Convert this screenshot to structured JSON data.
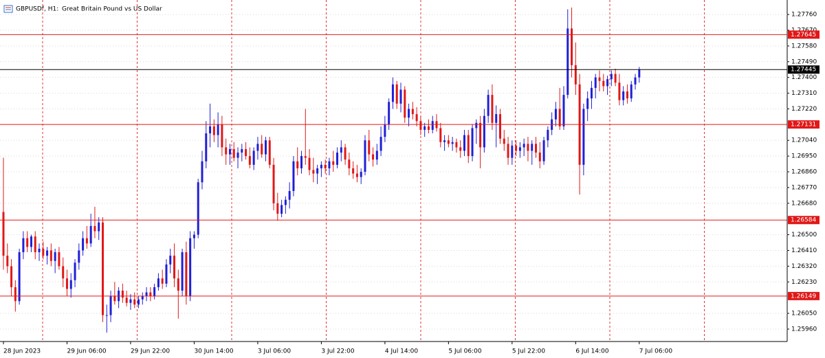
{
  "chart_data": {
    "type": "candlestick",
    "symbol": "GBPUSDf, H1:",
    "title": "Great Britain Pound vs US Dollar",
    "bull_color": "#1f1fd6",
    "bear_color": "#e01818",
    "ylim": [
      1.25889,
      1.27843
    ],
    "yticks": [
      {
        "value": 1.2776,
        "label": "1.27760"
      },
      {
        "value": 1.2767,
        "label": "1.27670"
      },
      {
        "value": 1.2758,
        "label": "1.27580"
      },
      {
        "value": 1.2749,
        "label": "1.27490"
      },
      {
        "value": 1.274,
        "label": "1.27400"
      },
      {
        "value": 1.2731,
        "label": "1.27310"
      },
      {
        "value": 1.2722,
        "label": "1.27220"
      },
      {
        "value": 1.2704,
        "label": "1.27040"
      },
      {
        "value": 1.2695,
        "label": "1.26950"
      },
      {
        "value": 1.2686,
        "label": "1.26860"
      },
      {
        "value": 1.2677,
        "label": "1.26770"
      },
      {
        "value": 1.2668,
        "label": "1.26680"
      },
      {
        "value": 1.265,
        "label": "1.26500"
      },
      {
        "value": 1.2641,
        "label": "1.26410"
      },
      {
        "value": 1.2632,
        "label": "1.26320"
      },
      {
        "value": 1.2623,
        "label": "1.26230"
      },
      {
        "value": 1.2605,
        "label": "1.26050"
      },
      {
        "value": 1.2596,
        "label": "1.25960"
      }
    ],
    "xticks": [
      {
        "value": 0,
        "label": "28 Jun 2023"
      },
      {
        "value": 16,
        "label": "29 Jun 06:00"
      },
      {
        "value": 32,
        "label": "29 Jun 22:00"
      },
      {
        "value": 48,
        "label": "30 Jun 14:00"
      },
      {
        "value": 64,
        "label": "3 Jul 06:00"
      },
      {
        "value": 80,
        "label": "3 Jul 22:00"
      },
      {
        "value": 96,
        "label": "4 Jul 14:00"
      },
      {
        "value": 112,
        "label": "5 Jul 06:00"
      },
      {
        "value": 128,
        "label": "5 Jul 22:00"
      },
      {
        "value": 144,
        "label": "6 Jul 14:00"
      },
      {
        "value": 160,
        "label": "7 Jul 06:00"
      }
    ],
    "levels": [
      {
        "value": 1.27645,
        "color": "#e01818"
      },
      {
        "value": 1.27445,
        "color": "#000000"
      },
      {
        "value": 1.27131,
        "color": "#e01818"
      },
      {
        "value": 1.26584,
        "color": "#e01818"
      },
      {
        "value": 1.26149,
        "color": "#e01818"
      }
    ],
    "candles": [
      [
        1.2663,
        1.2694,
        1.263,
        1.2638
      ],
      [
        1.2638,
        1.2645,
        1.2628,
        1.2632
      ],
      [
        1.2632,
        1.2636,
        1.2615,
        1.262
      ],
      [
        1.262,
        1.2624,
        1.2606,
        1.2612
      ],
      [
        1.2612,
        1.2642,
        1.261,
        1.264
      ],
      [
        1.264,
        1.2652,
        1.2636,
        1.2648
      ],
      [
        1.2648,
        1.2652,
        1.264,
        1.2643
      ],
      [
        1.2643,
        1.265,
        1.264,
        1.2649
      ],
      [
        1.2649,
        1.2652,
        1.2636,
        1.264
      ],
      [
        1.264,
        1.2645,
        1.2635,
        1.2642
      ],
      [
        1.2642,
        1.2646,
        1.2636,
        1.2638
      ],
      [
        1.2638,
        1.2643,
        1.2633,
        1.2641
      ],
      [
        1.2641,
        1.2645,
        1.2632,
        1.2635
      ],
      [
        1.2635,
        1.2642,
        1.2628,
        1.264
      ],
      [
        1.264,
        1.2643,
        1.263,
        1.2632
      ],
      [
        1.2632,
        1.2637,
        1.262,
        1.2625
      ],
      [
        1.2625,
        1.263,
        1.2615,
        1.2619
      ],
      [
        1.2619,
        1.2628,
        1.2614,
        1.2624
      ],
      [
        1.2624,
        1.2636,
        1.262,
        1.2634
      ],
      [
        1.2634,
        1.2645,
        1.263,
        1.2641
      ],
      [
        1.2641,
        1.2652,
        1.2638,
        1.2648
      ],
      [
        1.2648,
        1.2655,
        1.2642,
        1.2645
      ],
      [
        1.2645,
        1.2662,
        1.2643,
        1.2655
      ],
      [
        1.2655,
        1.2666,
        1.2648,
        1.2652
      ],
      [
        1.2652,
        1.266,
        1.2647,
        1.2657
      ],
      [
        1.2657,
        1.266,
        1.26,
        1.2604
      ],
      [
        1.2604,
        1.261,
        1.2594,
        1.2604
      ],
      [
        1.2604,
        1.2618,
        1.26,
        1.2615
      ],
      [
        1.2615,
        1.2623,
        1.261,
        1.2612
      ],
      [
        1.2612,
        1.262,
        1.2608,
        1.2618
      ],
      [
        1.2618,
        1.2622,
        1.2611,
        1.2614
      ],
      [
        1.2614,
        1.2618,
        1.2609,
        1.2611
      ],
      [
        1.2611,
        1.2616,
        1.2607,
        1.2613
      ],
      [
        1.2613,
        1.2617,
        1.2608,
        1.261
      ],
      [
        1.261,
        1.2615,
        1.2608,
        1.2613
      ],
      [
        1.2613,
        1.2617,
        1.261,
        1.2615
      ],
      [
        1.2615,
        1.262,
        1.2612,
        1.2617
      ],
      [
        1.2617,
        1.262,
        1.2612,
        1.2615
      ],
      [
        1.2615,
        1.2622,
        1.2613,
        1.262
      ],
      [
        1.262,
        1.2628,
        1.2618,
        1.2625
      ],
      [
        1.2625,
        1.263,
        1.2619,
        1.2622
      ],
      [
        1.2622,
        1.2636,
        1.262,
        1.2633
      ],
      [
        1.2633,
        1.2642,
        1.2628,
        1.2638
      ],
      [
        1.2638,
        1.2645,
        1.262,
        1.2625
      ],
      [
        1.2625,
        1.263,
        1.2602,
        1.2618
      ],
      [
        1.2618,
        1.2642,
        1.2615,
        1.264
      ],
      [
        1.264,
        1.2646,
        1.261,
        1.2615
      ],
      [
        1.2615,
        1.2652,
        1.2612,
        1.2648
      ],
      [
        1.2648,
        1.2652,
        1.2642,
        1.265
      ],
      [
        1.265,
        1.2682,
        1.2648,
        1.268
      ],
      [
        1.268,
        1.2698,
        1.2676,
        1.2692
      ],
      [
        1.2692,
        1.2715,
        1.2688,
        1.2708
      ],
      [
        1.2708,
        1.2725,
        1.27,
        1.2712
      ],
      [
        1.2712,
        1.2716,
        1.2703,
        1.2707
      ],
      [
        1.2707,
        1.272,
        1.27,
        1.2713
      ],
      [
        1.2713,
        1.2718,
        1.2695,
        1.27
      ],
      [
        1.27,
        1.2705,
        1.269,
        1.2696
      ],
      [
        1.2696,
        1.2702,
        1.269,
        1.2699
      ],
      [
        1.2699,
        1.2703,
        1.2692,
        1.2694
      ],
      [
        1.2694,
        1.27,
        1.2688,
        1.2697
      ],
      [
        1.2697,
        1.2702,
        1.2692,
        1.2699
      ],
      [
        1.2699,
        1.2703,
        1.2693,
        1.2695
      ],
      [
        1.2695,
        1.27,
        1.2688,
        1.269
      ],
      [
        1.269,
        1.27,
        1.2687,
        1.2698
      ],
      [
        1.2698,
        1.2706,
        1.2693,
        1.2702
      ],
      [
        1.2702,
        1.2707,
        1.2694,
        1.2696
      ],
      [
        1.2696,
        1.2706,
        1.2692,
        1.2704
      ],
      [
        1.2704,
        1.2706,
        1.2688,
        1.269
      ],
      [
        1.269,
        1.2694,
        1.2664,
        1.2668
      ],
      [
        1.2668,
        1.2674,
        1.2658,
        1.2662
      ],
      [
        1.2662,
        1.267,
        1.266,
        1.2667
      ],
      [
        1.2667,
        1.2672,
        1.2662,
        1.267
      ],
      [
        1.267,
        1.268,
        1.2665,
        1.2675
      ],
      [
        1.2675,
        1.2695,
        1.2672,
        1.2692
      ],
      [
        1.2692,
        1.27,
        1.2684,
        1.2688
      ],
      [
        1.2688,
        1.2698,
        1.2685,
        1.2695
      ],
      [
        1.2695,
        1.2722,
        1.269,
        1.2694
      ],
      [
        1.2694,
        1.2699,
        1.2684,
        1.2687
      ],
      [
        1.2687,
        1.2694,
        1.268,
        1.2685
      ],
      [
        1.2685,
        1.269,
        1.2679,
        1.2688
      ],
      [
        1.2688,
        1.2692,
        1.2683,
        1.269
      ],
      [
        1.269,
        1.2693,
        1.2685,
        1.2688
      ],
      [
        1.2688,
        1.2694,
        1.2684,
        1.2692
      ],
      [
        1.2692,
        1.2698,
        1.2686,
        1.269
      ],
      [
        1.269,
        1.27,
        1.2688,
        1.2697
      ],
      [
        1.2697,
        1.2704,
        1.2692,
        1.27
      ],
      [
        1.27,
        1.2702,
        1.269,
        1.2693
      ],
      [
        1.2693,
        1.2697,
        1.2684,
        1.2688
      ],
      [
        1.2688,
        1.2692,
        1.2682,
        1.2685
      ],
      [
        1.2685,
        1.269,
        1.268,
        1.2683
      ],
      [
        1.2683,
        1.2688,
        1.2679,
        1.2686
      ],
      [
        1.2686,
        1.2707,
        1.2684,
        1.2704
      ],
      [
        1.2704,
        1.271,
        1.2692,
        1.2696
      ],
      [
        1.2696,
        1.27,
        1.2689,
        1.2693
      ],
      [
        1.2693,
        1.2702,
        1.269,
        1.2698
      ],
      [
        1.2698,
        1.2712,
        1.2695,
        1.2706
      ],
      [
        1.2706,
        1.2718,
        1.2703,
        1.2713
      ],
      [
        1.2713,
        1.2728,
        1.271,
        1.2726
      ],
      [
        1.2726,
        1.274,
        1.2722,
        1.2736
      ],
      [
        1.2736,
        1.2738,
        1.2722,
        1.2725
      ],
      [
        1.2725,
        1.2737,
        1.272,
        1.2733
      ],
      [
        1.2733,
        1.2735,
        1.2714,
        1.2717
      ],
      [
        1.2717,
        1.2725,
        1.2712,
        1.2722
      ],
      [
        1.2722,
        1.2726,
        1.2716,
        1.2719
      ],
      [
        1.2719,
        1.2723,
        1.2712,
        1.2715
      ],
      [
        1.2715,
        1.2718,
        1.2707,
        1.271
      ],
      [
        1.271,
        1.2714,
        1.2706,
        1.2712
      ],
      [
        1.2712,
        1.2716,
        1.2708,
        1.271
      ],
      [
        1.271,
        1.2718,
        1.2708,
        1.2715
      ],
      [
        1.2715,
        1.2719,
        1.2709,
        1.2711
      ],
      [
        1.2711,
        1.2714,
        1.27,
        1.2703
      ],
      [
        1.2703,
        1.2707,
        1.2698,
        1.2704
      ],
      [
        1.2704,
        1.2707,
        1.27,
        1.2702
      ],
      [
        1.2702,
        1.2706,
        1.2698,
        1.2703
      ],
      [
        1.2703,
        1.2705,
        1.2697,
        1.27
      ],
      [
        1.27,
        1.2704,
        1.2694,
        1.2698
      ],
      [
        1.2698,
        1.271,
        1.2695,
        1.2707
      ],
      [
        1.2707,
        1.271,
        1.2691,
        1.2695
      ],
      [
        1.2695,
        1.2713,
        1.2692,
        1.2711
      ],
      [
        1.2711,
        1.2716,
        1.2702,
        1.2714
      ],
      [
        1.2714,
        1.2718,
        1.2688,
        1.27
      ],
      [
        1.27,
        1.2722,
        1.2697,
        1.2718
      ],
      [
        1.2718,
        1.2733,
        1.2714,
        1.273
      ],
      [
        1.273,
        1.2736,
        1.271,
        1.2714
      ],
      [
        1.2714,
        1.2724,
        1.27,
        1.2719
      ],
      [
        1.2719,
        1.2722,
        1.2702,
        1.2705
      ],
      [
        1.2705,
        1.271,
        1.2698,
        1.2702
      ],
      [
        1.2702,
        1.2706,
        1.269,
        1.2694
      ],
      [
        1.2694,
        1.2704,
        1.269,
        1.2701
      ],
      [
        1.2701,
        1.2704,
        1.2695,
        1.2698
      ],
      [
        1.2698,
        1.2703,
        1.2694,
        1.27
      ],
      [
        1.27,
        1.2705,
        1.2695,
        1.2702
      ],
      [
        1.2702,
        1.2706,
        1.2692,
        1.2698
      ],
      [
        1.2698,
        1.2704,
        1.269,
        1.2702
      ],
      [
        1.2702,
        1.2706,
        1.2694,
        1.2697
      ],
      [
        1.2697,
        1.2703,
        1.2688,
        1.2692
      ],
      [
        1.2692,
        1.2706,
        1.269,
        1.2704
      ],
      [
        1.2704,
        1.2712,
        1.27,
        1.271
      ],
      [
        1.271,
        1.272,
        1.2707,
        1.2716
      ],
      [
        1.2716,
        1.2726,
        1.2712,
        1.2722
      ],
      [
        1.2722,
        1.2734,
        1.271,
        1.2712
      ],
      [
        1.2712,
        1.2735,
        1.271,
        1.273
      ],
      [
        1.273,
        1.2779,
        1.2728,
        1.2768
      ],
      [
        1.2768,
        1.278,
        1.274,
        1.2747
      ],
      [
        1.2747,
        1.276,
        1.273,
        1.2736
      ],
      [
        1.2736,
        1.2742,
        1.2673,
        1.269
      ],
      [
        1.269,
        1.2725,
        1.2684,
        1.2722
      ],
      [
        1.2722,
        1.2732,
        1.2715,
        1.2728
      ],
      [
        1.2728,
        1.2738,
        1.2722,
        1.2734
      ],
      [
        1.2734,
        1.2742,
        1.2728,
        1.274
      ],
      [
        1.274,
        1.2744,
        1.2732,
        1.2738
      ],
      [
        1.2738,
        1.2742,
        1.2732,
        1.2735
      ],
      [
        1.2735,
        1.2741,
        1.273,
        1.2739
      ],
      [
        1.2739,
        1.2744,
        1.2735,
        1.2742
      ],
      [
        1.2742,
        1.2745,
        1.2735,
        1.2737
      ],
      [
        1.2737,
        1.2742,
        1.2724,
        1.2727
      ],
      [
        1.2727,
        1.2735,
        1.2724,
        1.2732
      ],
      [
        1.2732,
        1.2736,
        1.2725,
        1.2728
      ],
      [
        1.2728,
        1.2738,
        1.2726,
        1.2736
      ],
      [
        1.2736,
        1.2742,
        1.2733,
        1.274
      ],
      [
        1.274,
        1.2746,
        1.2737,
        1.27445
      ]
    ]
  }
}
